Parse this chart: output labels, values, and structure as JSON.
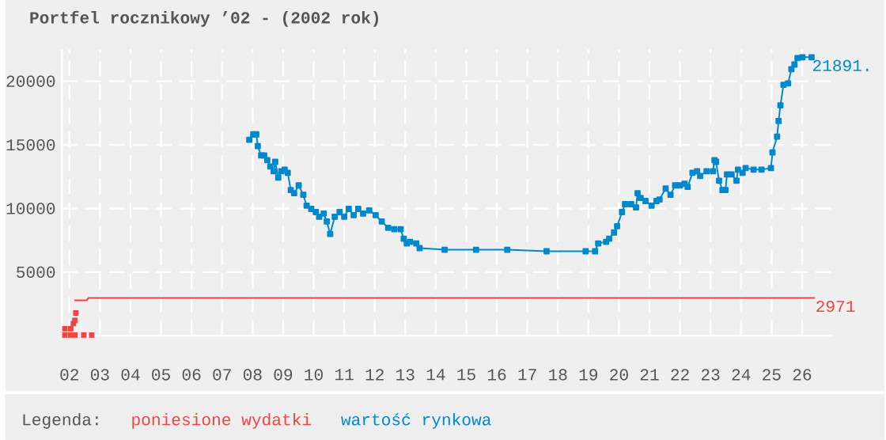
{
  "chart_data": {
    "type": "line",
    "title": "Portfel rocznikowy ’02 - (2002 rok)",
    "legend_title": "Legenda:",
    "legend": "bottom",
    "grid": true,
    "marker": "square",
    "xlim": [
      2001.75,
      2027
    ],
    "ylim": [
      0,
      22500
    ],
    "xticks": [
      {
        "value": 2002,
        "label": "02"
      },
      {
        "value": 2003,
        "label": "03"
      },
      {
        "value": 2004,
        "label": "04"
      },
      {
        "value": 2005,
        "label": "05"
      },
      {
        "value": 2006,
        "label": "06"
      },
      {
        "value": 2007,
        "label": "07"
      },
      {
        "value": 2008,
        "label": "08"
      },
      {
        "value": 2009,
        "label": "09"
      },
      {
        "value": 2010,
        "label": "10"
      },
      {
        "value": 2011,
        "label": "11"
      },
      {
        "value": 2012,
        "label": "12"
      },
      {
        "value": 2013,
        "label": "13"
      },
      {
        "value": 2014,
        "label": "14"
      },
      {
        "value": 2015,
        "label": "15"
      },
      {
        "value": 2016,
        "label": "16"
      },
      {
        "value": 2017,
        "label": "17"
      },
      {
        "value": 2018,
        "label": "18"
      },
      {
        "value": 2019,
        "label": "19"
      },
      {
        "value": 2020,
        "label": "20"
      },
      {
        "value": 2021,
        "label": "21"
      },
      {
        "value": 2022,
        "label": "22"
      },
      {
        "value": 2023,
        "label": "23"
      },
      {
        "value": 2024,
        "label": "24"
      },
      {
        "value": 2025,
        "label": "25"
      },
      {
        "value": 2026,
        "label": "26"
      }
    ],
    "yticks": [
      5000,
      10000,
      15000,
      20000
    ],
    "series": [
      {
        "name": "poniesione wydatki",
        "color": "#ee4444",
        "marker": "none",
        "x": [
          2002.16,
          2002.57,
          2002.62,
          2026.42
        ],
        "values": [
          2780,
          2780,
          2971,
          2971
        ]
      },
      {
        "type": "scatter",
        "color": "#ee4444",
        "x": [
          2001.85,
          2002.04,
          2002.13,
          2002.18,
          2002.21,
          2001.85,
          2002.04,
          2002.18,
          2002.47,
          2002.73
        ],
        "values": [
          555,
          555,
          960,
          1210,
          1790,
          60,
          60,
          60,
          60,
          60
        ]
      },
      {
        "name": "wartość rynkowa",
        "color": "#0088cc",
        "x": [
          2007.89,
          2008.02,
          2008.12,
          2008.17,
          2008.28,
          2008.38,
          2008.48,
          2008.58,
          2008.69,
          2008.74,
          2008.84,
          2008.94,
          2009.05,
          2009.15,
          2009.25,
          2009.36,
          2009.51,
          2009.66,
          2009.77,
          2009.92,
          2010.07,
          2010.18,
          2010.33,
          2010.43,
          2010.54,
          2010.69,
          2010.85,
          2011.0,
          2011.15,
          2011.31,
          2011.46,
          2011.62,
          2011.82,
          2012.03,
          2012.23,
          2012.44,
          2012.64,
          2012.85,
          2012.95,
          2013.05,
          2013.16,
          2013.36,
          2013.47,
          2014.29,
          2015.32,
          2016.34,
          2017.63,
          2018.91,
          2019.22,
          2019.32,
          2019.58,
          2019.68,
          2019.84,
          2019.94,
          2020.1,
          2020.2,
          2020.4,
          2020.56,
          2020.61,
          2020.71,
          2020.87,
          2021.07,
          2021.23,
          2021.33,
          2021.53,
          2021.69,
          2021.84,
          2022.0,
          2022.15,
          2022.25,
          2022.41,
          2022.56,
          2022.66,
          2022.87,
          2023.08,
          2023.13,
          2023.18,
          2023.28,
          2023.39,
          2023.49,
          2023.54,
          2023.69,
          2023.85,
          2023.9,
          2024.05,
          2024.15,
          2024.41,
          2024.67,
          2024.98,
          2025.03,
          2025.18,
          2025.23,
          2025.29,
          2025.39,
          2025.54,
          2025.65,
          2025.75,
          2025.85,
          2026.01,
          2026.31
        ],
        "values": [
          15400,
          15830,
          15830,
          14910,
          14170,
          14170,
          13800,
          13300,
          12930,
          13670,
          12440,
          12930,
          13060,
          12810,
          11450,
          11200,
          11820,
          11080,
          10220,
          9970,
          9720,
          9350,
          9600,
          8980,
          8000,
          9350,
          9720,
          9350,
          9970,
          9480,
          9970,
          9600,
          9850,
          9480,
          8980,
          8490,
          8370,
          8370,
          7630,
          7260,
          7380,
          7260,
          6890,
          6760,
          6760,
          6760,
          6640,
          6640,
          6640,
          7260,
          7380,
          7630,
          8120,
          8610,
          9720,
          10340,
          10340,
          10090,
          11200,
          10830,
          10590,
          10220,
          10590,
          10710,
          11570,
          11080,
          11820,
          11820,
          11950,
          11700,
          12810,
          12930,
          12560,
          12930,
          12930,
          13800,
          13670,
          12190,
          11450,
          11450,
          12680,
          12680,
          12190,
          13060,
          12810,
          13180,
          13060,
          13060,
          13180,
          14410,
          15650,
          16880,
          18110,
          19720,
          19840,
          20950,
          21320,
          21820,
          21890,
          21891
        ]
      }
    ],
    "annotations": [
      {
        "text": "21891.",
        "x": 2026.31,
        "y": 21891
      },
      {
        "text": "2971",
        "x": 2026.42,
        "y": 2971
      }
    ]
  }
}
